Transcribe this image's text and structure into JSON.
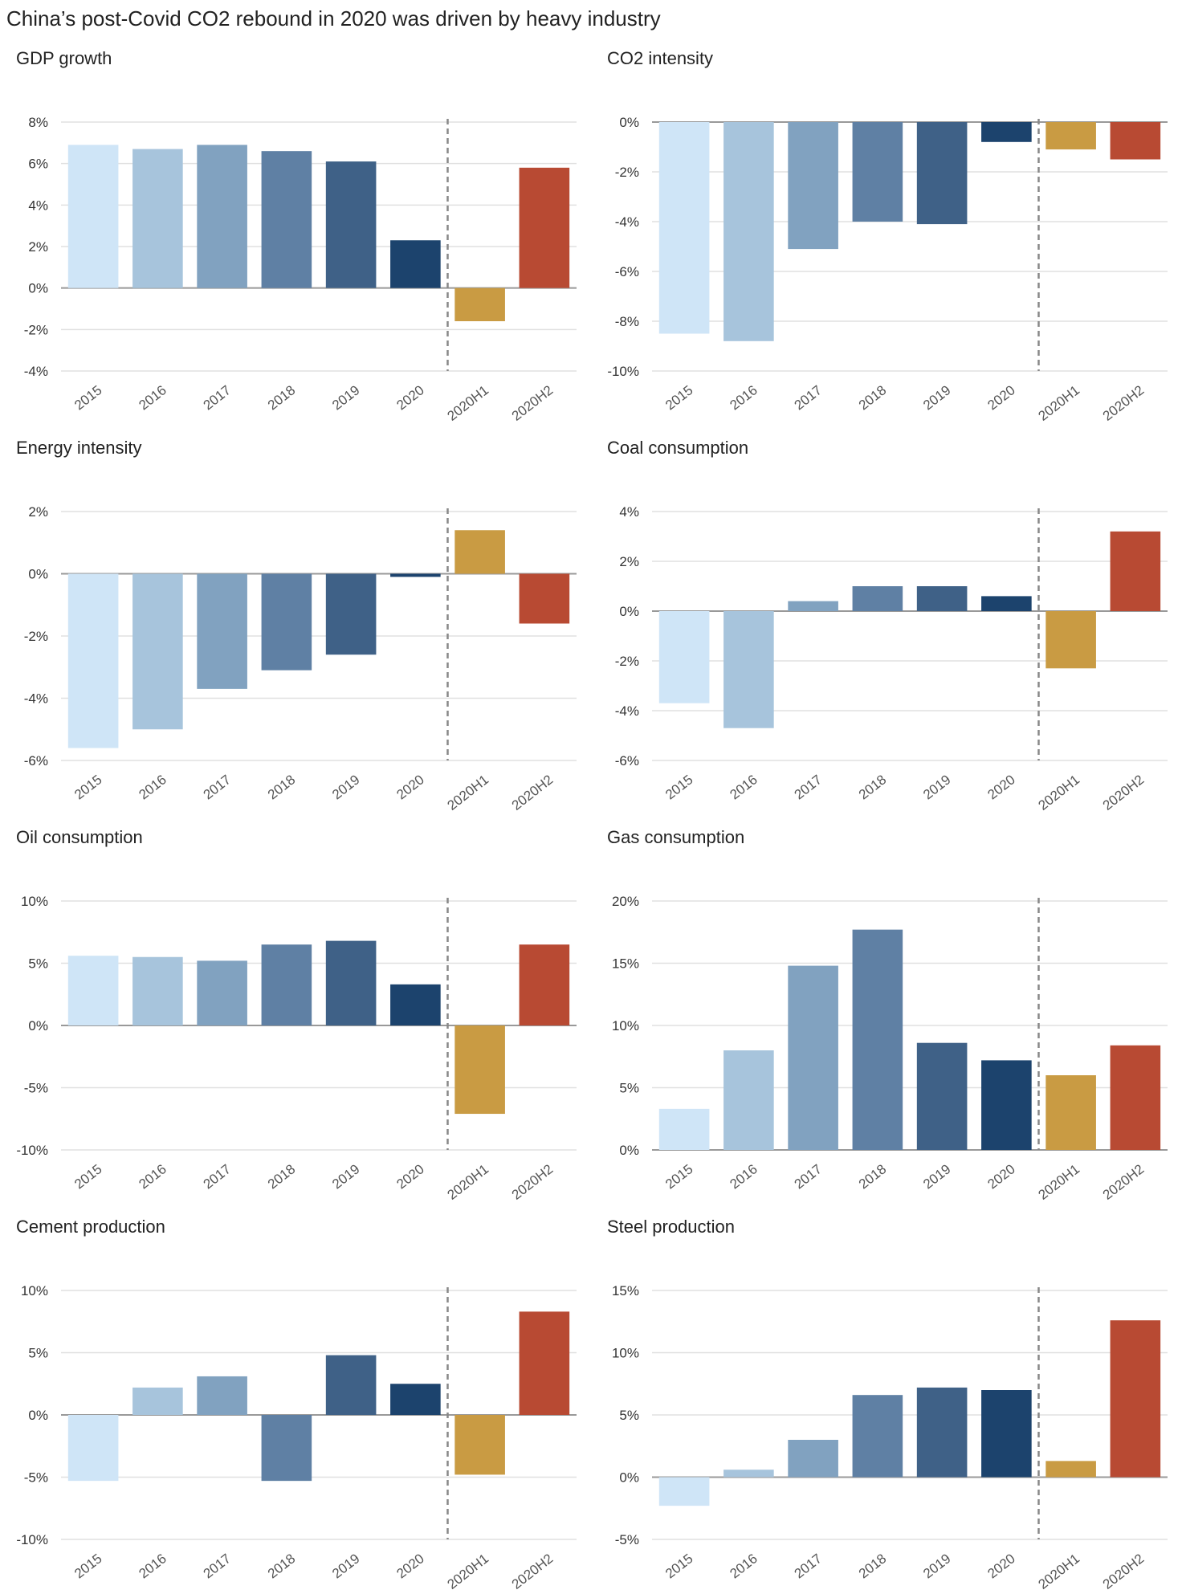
{
  "title": "China’s post-Covid CO2 rebound in 2020 was driven by heavy industry",
  "colors": {
    "bars": [
      "#cfe5f7",
      "#a7c4dc",
      "#81a2c0",
      "#5f80a4",
      "#3f6187",
      "#1c436d",
      "#c99b43",
      "#b84a33"
    ],
    "grid": "#e0e0e0",
    "zero_line": "#999999",
    "divider": "#888888"
  },
  "chart_data": [
    {
      "title": "GDP growth",
      "type": "bar",
      "categories": [
        "2015",
        "2016",
        "2017",
        "2018",
        "2019",
        "2020",
        "2020H1",
        "2020H2"
      ],
      "values": [
        6.9,
        6.7,
        6.9,
        6.6,
        6.1,
        2.3,
        -1.6,
        5.8
      ],
      "ylim": [
        -4,
        8
      ],
      "yticks": [
        8,
        6,
        4,
        2,
        0,
        -2,
        -4
      ],
      "ytick_labels": [
        "8%",
        "6%",
        "4%",
        "2%",
        "0%",
        "-2%",
        "-4%"
      ],
      "grid": true
    },
    {
      "title": "CO2 intensity",
      "type": "bar",
      "categories": [
        "2015",
        "2016",
        "2017",
        "2018",
        "2019",
        "2020",
        "2020H1",
        "2020H2"
      ],
      "values": [
        -8.5,
        -8.8,
        -5.1,
        -4.0,
        -4.1,
        -0.8,
        -1.1,
        -1.5
      ],
      "ylim": [
        -10,
        0
      ],
      "yticks": [
        0,
        -2,
        -4,
        -6,
        -8,
        -10
      ],
      "ytick_labels": [
        "0%",
        "-2%",
        "-4%",
        "-6%",
        "-8%",
        "-10%"
      ],
      "grid": true
    },
    {
      "title": "Energy intensity",
      "type": "bar",
      "categories": [
        "2015",
        "2016",
        "2017",
        "2018",
        "2019",
        "2020",
        "2020H1",
        "2020H2"
      ],
      "values": [
        -5.6,
        -5.0,
        -3.7,
        -3.1,
        -2.6,
        -0.1,
        1.4,
        -1.6
      ],
      "ylim": [
        -6,
        2
      ],
      "yticks": [
        2,
        0,
        -2,
        -4,
        -6
      ],
      "ytick_labels": [
        "2%",
        "0%",
        "-2%",
        "-4%",
        "-6%"
      ],
      "grid": true
    },
    {
      "title": "Coal consumption",
      "type": "bar",
      "categories": [
        "2015",
        "2016",
        "2017",
        "2018",
        "2019",
        "2020",
        "2020H1",
        "2020H2"
      ],
      "values": [
        -3.7,
        -4.7,
        0.4,
        1.0,
        1.0,
        0.6,
        -2.3,
        3.2
      ],
      "ylim": [
        -6,
        4
      ],
      "yticks": [
        4,
        2,
        0,
        -2,
        -4,
        -6
      ],
      "ytick_labels": [
        "4%",
        "2%",
        "0%",
        "-2%",
        "-4%",
        "-6%"
      ],
      "grid": true
    },
    {
      "title": "Oil consumption",
      "type": "bar",
      "categories": [
        "2015",
        "2016",
        "2017",
        "2018",
        "2019",
        "2020",
        "2020H1",
        "2020H2"
      ],
      "values": [
        5.6,
        5.5,
        5.2,
        6.5,
        6.8,
        3.3,
        -7.1,
        6.5
      ],
      "ylim": [
        -10,
        10
      ],
      "yticks": [
        10,
        5,
        0,
        -5,
        -10
      ],
      "ytick_labels": [
        "10%",
        "5%",
        "0%",
        "-5%",
        "-10%"
      ],
      "grid": true
    },
    {
      "title": "Gas consumption",
      "type": "bar",
      "categories": [
        "2015",
        "2016",
        "2017",
        "2018",
        "2019",
        "2020",
        "2020H1",
        "2020H2"
      ],
      "values": [
        3.3,
        8.0,
        14.8,
        17.7,
        8.6,
        7.2,
        6.0,
        8.4
      ],
      "ylim": [
        0,
        20
      ],
      "yticks": [
        20,
        15,
        10,
        5,
        0
      ],
      "ytick_labels": [
        "20%",
        "15%",
        "10%",
        "5%",
        "0%"
      ],
      "grid": true
    },
    {
      "title": "Cement production",
      "type": "bar",
      "categories": [
        "2015",
        "2016",
        "2017",
        "2018",
        "2019",
        "2020",
        "2020H1",
        "2020H2"
      ],
      "values": [
        -5.3,
        2.2,
        3.1,
        -5.3,
        4.8,
        2.5,
        -4.8,
        8.3
      ],
      "ylim": [
        -10,
        10
      ],
      "yticks": [
        10,
        5,
        0,
        -5,
        -10
      ],
      "ytick_labels": [
        "10%",
        "5%",
        "0%",
        "-5%",
        "-10%"
      ],
      "grid": true
    },
    {
      "title": "Steel production",
      "type": "bar",
      "categories": [
        "2015",
        "2016",
        "2017",
        "2018",
        "2019",
        "2020",
        "2020H1",
        "2020H2"
      ],
      "values": [
        -2.3,
        0.6,
        3.0,
        6.6,
        7.2,
        7.0,
        1.3,
        12.6
      ],
      "ylim": [
        -5,
        15
      ],
      "yticks": [
        15,
        10,
        5,
        0,
        -5
      ],
      "ytick_labels": [
        "15%",
        "10%",
        "5%",
        "0%",
        "-5%"
      ],
      "grid": true
    }
  ]
}
